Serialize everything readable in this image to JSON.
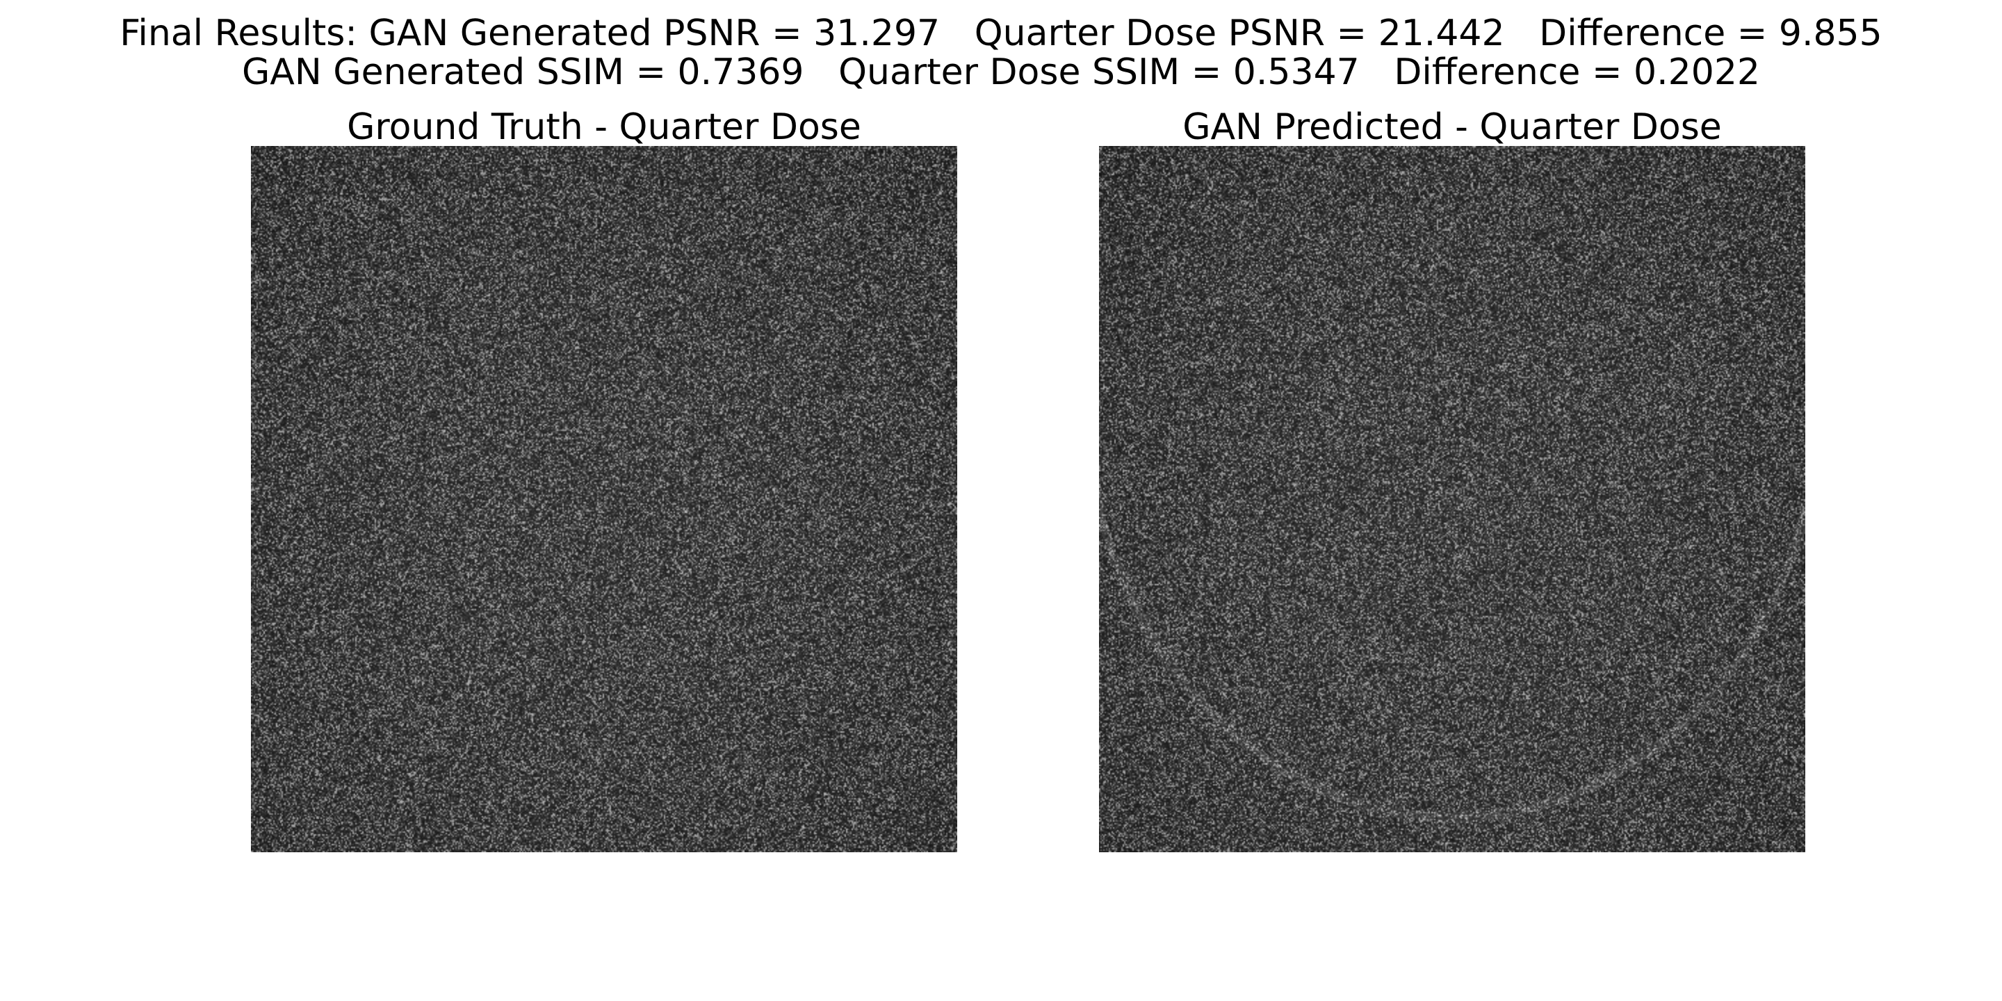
{
  "figure": {
    "suptitle_line1": "Final Results: GAN Generated PSNR = 31.297   Quarter Dose PSNR = 21.442   Difference = 9.855",
    "suptitle_line2": "GAN Generated SSIM = 0.7369   Quarter Dose SSIM = 0.5347   Difference = 0.2022"
  },
  "panels": [
    {
      "title": "Ground Truth - Quarter Dose"
    },
    {
      "title": "GAN Predicted - Quarter Dose"
    }
  ],
  "colors": {
    "background": "#ffffff",
    "image_base": "#1c1c1c"
  }
}
